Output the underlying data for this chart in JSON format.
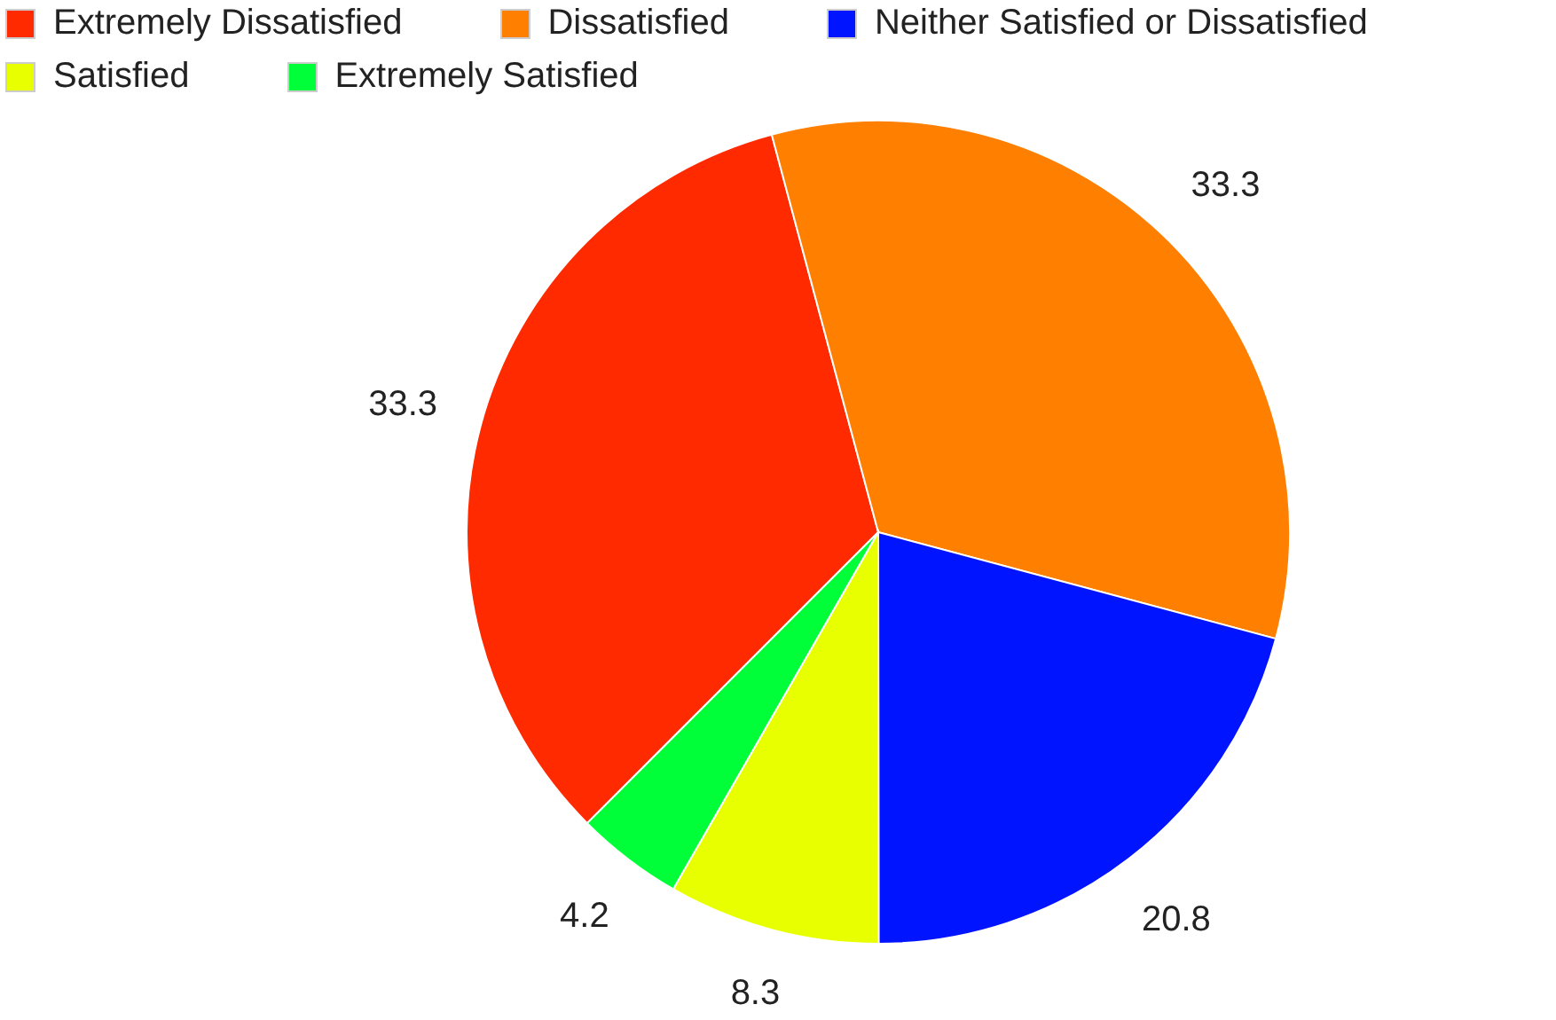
{
  "chart_data": {
    "type": "pie",
    "categories": [
      "Extremely Dissatisfied",
      "Dissatisfied",
      "Neither Satisfied or Dissatisfied",
      "Satisfied",
      "Extremely Satisfied"
    ],
    "values": [
      33.3,
      33.3,
      20.8,
      8.3,
      4.2
    ],
    "colors": [
      "#ff2a00",
      "#ff7f00",
      "#0014ff",
      "#e8ff00",
      "#00ff38"
    ],
    "data_labels": true,
    "legend": "top"
  }
}
